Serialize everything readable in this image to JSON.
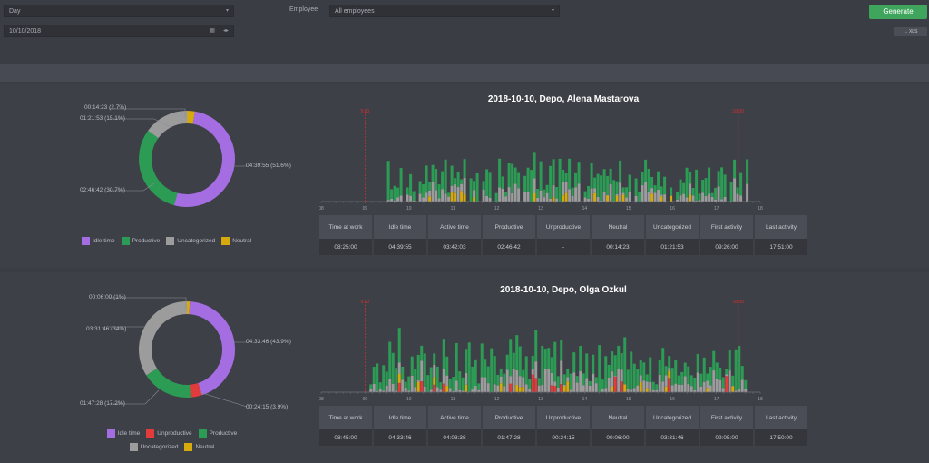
{
  "filters": {
    "period": "Day",
    "employee_label": "Employee",
    "employee": "All employees",
    "date": "10/10/2018",
    "generate_label": "Generate",
    "export_label": "→ XLS"
  },
  "colors": {
    "idle": "#a56de2",
    "unproductive": "#e23b3b",
    "productive": "#2c9c55",
    "uncategorized": "#9c9c9c",
    "neutral": "#d6a90c"
  },
  "stat_headers": [
    "Time at work",
    "Idle time",
    "Active time",
    "Productive",
    "Unproductive",
    "Neutral",
    "Uncategorized",
    "First activity",
    "Last activity"
  ],
  "reports": [
    {
      "title": "2018-10-10, Depo, Alena Mastarova",
      "donut_labels": {
        "top": "00:14:23 (2.7%)",
        "upper": "01:21:53 (15.1%)",
        "left": "02:46:42 (30.7%)",
        "right": "04:39:55 (51.6%)"
      },
      "legend": [
        {
          "label": "Idle time",
          "color_key": "idle"
        },
        {
          "label": "Productive",
          "color_key": "productive"
        },
        {
          "label": "Uncategorized",
          "color_key": "uncategorized"
        },
        {
          "label": "Neutral",
          "color_key": "neutral"
        }
      ],
      "marker_start": "9:00",
      "marker_end": "18:00",
      "stats": [
        "08:25:00",
        "04:39:55",
        "03:42:03",
        "02:46:42",
        "-",
        "00:14:23",
        "01:21:53",
        "09:26:00",
        "17:51:00"
      ]
    },
    {
      "title": "2018-10-10, Depo, Olga Ozkul",
      "donut_labels": {
        "top": "00:06:00 (1%)",
        "upper": "03:31:46 (34%)",
        "left": "01:47:28 (17.2%)",
        "right": "04:33:46 (43.9%)",
        "bottom": "00:24:15 (3.9%)"
      },
      "legend": [
        {
          "label": "Idle time",
          "color_key": "idle"
        },
        {
          "label": "Unproductive",
          "color_key": "unproductive"
        },
        {
          "label": "Productive",
          "color_key": "productive"
        },
        {
          "label": "Uncategorized",
          "color_key": "uncategorized"
        },
        {
          "label": "Neutral",
          "color_key": "neutral"
        }
      ],
      "marker_start": "9:00",
      "marker_end": "18:00",
      "stats": [
        "08:45:00",
        "04:33:46",
        "04:03:38",
        "01:47:28",
        "00:24:15",
        "00:06:00",
        "03:31:46",
        "09:05:00",
        "17:50:00"
      ]
    }
  ],
  "axis_hours": [
    "08",
    "09",
    "10",
    "11",
    "12",
    "13",
    "14",
    "15",
    "16",
    "17",
    "18"
  ]
}
